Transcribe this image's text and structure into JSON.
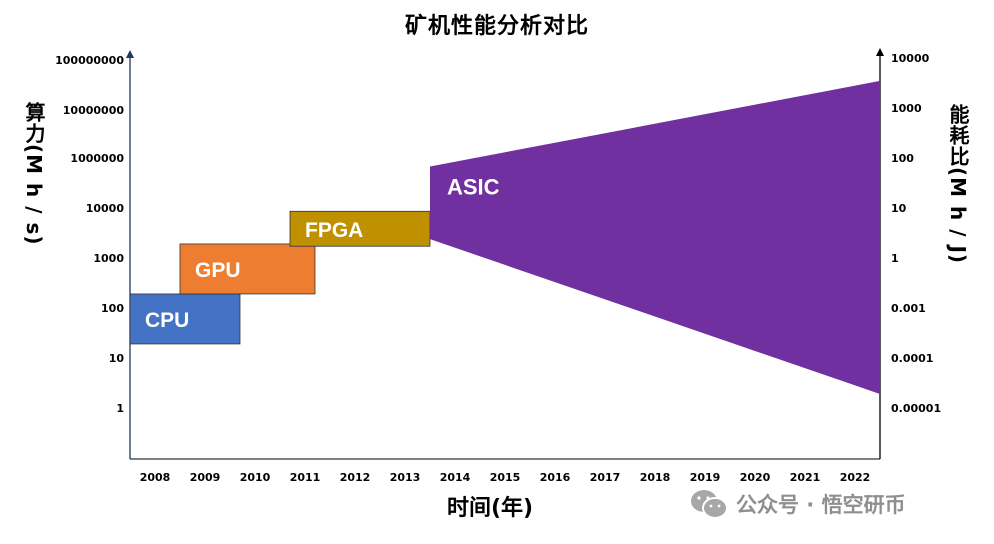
{
  "chart_data": {
    "type": "area",
    "title": "矿机性能分析对比",
    "xlabel": "时间(年)",
    "ylabel_left": "算力(M h / s)",
    "ylabel_right": "能耗比(M h / J)",
    "x_ticks": [
      "2008",
      "2009",
      "2010",
      "2011",
      "2012",
      "2013",
      "2014",
      "2015",
      "2016",
      "2017",
      "2018",
      "2019",
      "2020",
      "2021",
      "2022"
    ],
    "y_left_ticks": [
      "1",
      "10",
      "100",
      "1000",
      "10000",
      "1000000",
      "10000000",
      "100000000"
    ],
    "y_right_ticks": [
      "0.00001",
      "0.0001",
      "0.001",
      "1",
      "10",
      "100",
      "1000",
      "10000"
    ],
    "series": [
      {
        "name": "CPU",
        "color": "#4472C4",
        "x_start": 2008,
        "x_end": 2009.7,
        "hashrate_low": 20,
        "hashrate_high": 200
      },
      {
        "name": "GPU",
        "color": "#ED7D31",
        "x_start": 2009,
        "x_end": 2011.2,
        "hashrate_low": 200,
        "hashrate_high": 2000
      },
      {
        "name": "FPGA",
        "color": "#BF9000",
        "x_start": 2011.2,
        "x_end": 2013.5,
        "hashrate_low": 1800,
        "hashrate_high": 9000
      },
      {
        "name": "ASIC",
        "color": "#7030A0",
        "x_start": 2013.5,
        "x_end": 2022.5,
        "upper_start": 500000,
        "upper_end": 40000000,
        "lower_start": 2500,
        "lower_end": 2
      }
    ]
  },
  "watermark": {
    "icon": "wechat-icon",
    "text": "公众号 · 悟空研币"
  }
}
